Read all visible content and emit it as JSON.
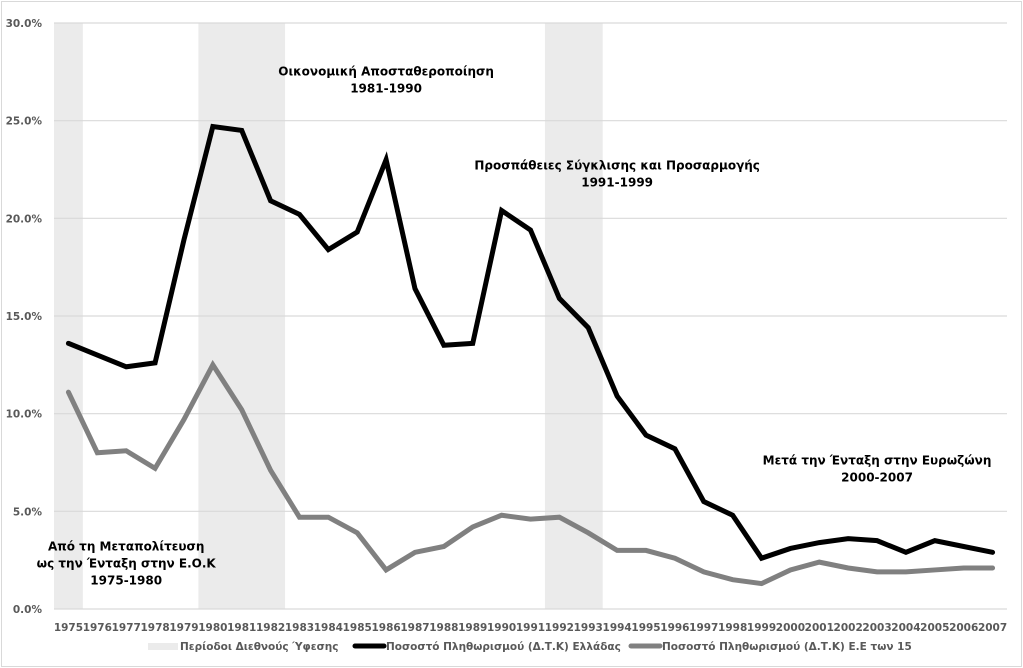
{
  "chart_data": {
    "type": "line",
    "title": "",
    "xlabel": "",
    "ylabel": "",
    "ylim": [
      0,
      30
    ],
    "y_ticks": [
      "0.0%",
      "5.0%",
      "10.0%",
      "15.0%",
      "20.0%",
      "25.0%",
      "30.0%"
    ],
    "y_tick_values": [
      0,
      5,
      10,
      15,
      20,
      25,
      30
    ],
    "grid": true,
    "categories": [
      "1975",
      "1976",
      "1977",
      "1978",
      "1979",
      "1980",
      "1981",
      "1982",
      "1983",
      "1984",
      "1985",
      "1986",
      "1987",
      "1988",
      "1989",
      "1990",
      "1991",
      "1992",
      "1993",
      "1994",
      "1995",
      "1996",
      "1997",
      "1998",
      "1999",
      "2000",
      "2001",
      "2002",
      "2003",
      "2004",
      "2005",
      "2006",
      "2007"
    ],
    "shaded_periods": {
      "name": "Περίοδοι Διεθνούς Ύφεσης",
      "color": "#ebebeb",
      "ranges": [
        [
          "1975",
          "1975"
        ],
        [
          "1980",
          "1982"
        ],
        [
          "1992",
          "1993"
        ]
      ]
    },
    "series": [
      {
        "name": "Ποσοστό Πληθωρισμού (Δ.Τ.Κ) Ελλάδας",
        "color": "#000000",
        "values": [
          13.6,
          13.0,
          12.4,
          12.6,
          18.9,
          24.7,
          24.5,
          20.9,
          20.2,
          18.4,
          19.3,
          23.0,
          16.4,
          13.5,
          13.6,
          20.4,
          19.4,
          15.9,
          14.4,
          10.9,
          8.9,
          8.2,
          5.5,
          4.8,
          2.6,
          3.1,
          3.4,
          3.6,
          3.5,
          2.9,
          3.5,
          3.2,
          2.9
        ]
      },
      {
        "name": "Ποσοστό Πληθωρισμού (Δ.Τ.Κ) Ε.Ε των 15",
        "color": "#808080",
        "values": [
          11.1,
          8.0,
          8.1,
          7.2,
          9.7,
          12.5,
          10.2,
          7.1,
          4.7,
          4.7,
          3.9,
          2.0,
          2.9,
          3.2,
          4.2,
          4.8,
          4.6,
          4.7,
          3.9,
          3.0,
          3.0,
          2.6,
          1.9,
          1.5,
          1.3,
          2.0,
          2.4,
          2.1,
          1.9,
          1.9,
          2.0,
          2.1,
          2.1
        ]
      }
    ],
    "annotations": [
      {
        "lines": [
          "Από τη Μεταπολίτευση",
          "ως την Ένταξη στην Ε.Ο.Κ",
          "1975-1980"
        ],
        "anchor_year": "1977",
        "anchor_value": 3.0
      },
      {
        "lines": [
          "Οικονομική Αποσταθεροποίηση",
          "1981-1990"
        ],
        "anchor_year": "1986",
        "anchor_value": 27.3
      },
      {
        "lines": [
          "Προσπάθειες Σύγκλισης και Προσαρμογής",
          "1991-1999"
        ],
        "anchor_year": "1994",
        "anchor_value": 22.5
      },
      {
        "lines": [
          "Μετά την Ένταξη στην Ευρωζώνη",
          "2000-2007"
        ],
        "anchor_year": "2003",
        "anchor_value": 7.4
      }
    ],
    "legend": {
      "position": "bottom",
      "items": [
        "Περίοδοι Διεθνούς Ύφεσης",
        "Ποσοστό Πληθωρισμού (Δ.Τ.Κ) Ελλάδας",
        "Ποσοστό Πληθωρισμού (Δ.Τ.Κ) Ε.Ε των 15"
      ]
    }
  }
}
